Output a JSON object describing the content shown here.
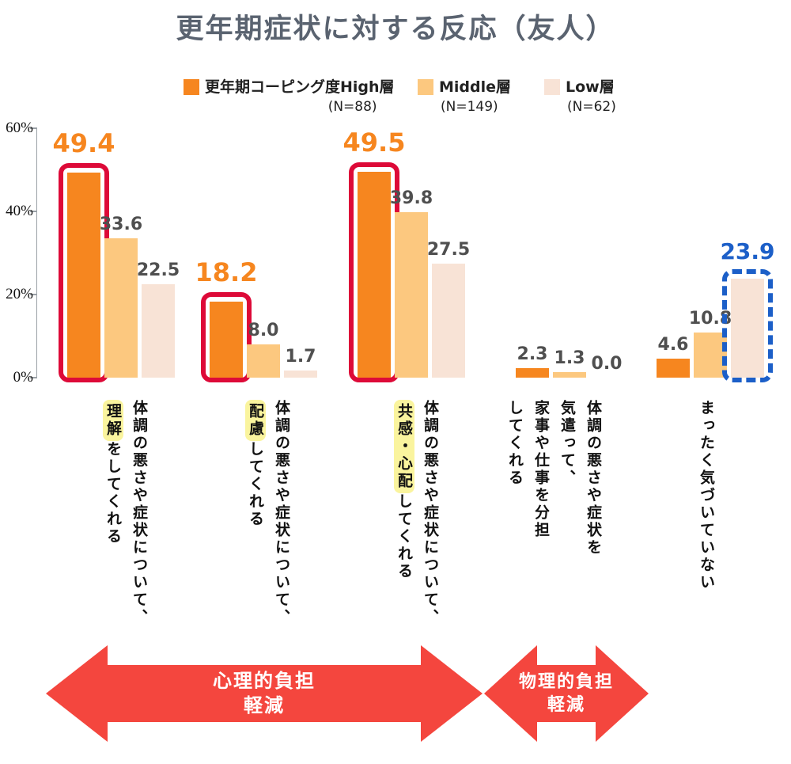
{
  "title": "更年期症状に対する反応（友人）",
  "legend": [
    {
      "label": "更年期コーピング度High層",
      "n": "(N=88)",
      "color": "#F6861F"
    },
    {
      "label": "Middle層",
      "n": "(N=149)",
      "color": "#FCC87F"
    },
    {
      "label": "Low層",
      "n": "(N=62)",
      "color": "#F8E3D6"
    }
  ],
  "chart_data": {
    "type": "bar",
    "title": "更年期症状に対する反応（友人）",
    "ylabel": "",
    "ylim": [
      0,
      60
    ],
    "yticks": [
      "60%",
      "40%",
      "20%",
      "0%"
    ],
    "grid": false,
    "legend_position": "top",
    "series_names": [
      "更年期コーピング度High層 (N=88)",
      "Middle層 (N=149)",
      "Low層 (N=62)"
    ],
    "groups": [
      {
        "category": "体調の悪さや症状について、理解をしてくれる",
        "label_lines": [
          [
            {
              "t": "体調の悪さや症状について、"
            }
          ],
          [
            {
              "t": "理解",
              "hl": true
            },
            {
              "t": "をしてくれる"
            }
          ]
        ],
        "values": [
          49.4,
          33.6,
          22.5
        ],
        "highlight": {
          "series": 0,
          "style": "red-solid"
        }
      },
      {
        "category": "体調の悪さや症状について、配慮してくれる",
        "label_lines": [
          [
            {
              "t": "体調の悪さや症状について、"
            }
          ],
          [
            {
              "t": "配慮",
              "hl": true
            },
            {
              "t": "してくれる"
            }
          ]
        ],
        "values": [
          18.2,
          8.0,
          1.7
        ],
        "highlight": {
          "series": 0,
          "style": "red-solid"
        }
      },
      {
        "category": "体調の悪さや症状について、共感・心配してくれる",
        "label_lines": [
          [
            {
              "t": "体調の悪さや症状について、"
            }
          ],
          [
            {
              "t": "共感・心配",
              "hl": true
            },
            {
              "t": "してくれる"
            }
          ]
        ],
        "values": [
          49.5,
          39.8,
          27.5
        ],
        "highlight": {
          "series": 0,
          "style": "red-solid"
        }
      },
      {
        "category": "体調の悪さや症状を気遣って、家事や仕事を分担してくれる",
        "label_lines": [
          [
            {
              "t": "体調の悪さや症状を"
            }
          ],
          [
            {
              "t": "気遣って、"
            }
          ],
          [
            {
              "t": "家事や仕事を分担"
            }
          ],
          [
            {
              "t": "してくれる"
            }
          ]
        ],
        "values": [
          2.3,
          1.3,
          0.0
        ],
        "highlight": null
      },
      {
        "category": "まったく気づいていない",
        "label_lines": [
          [
            {
              "t": "まったく気づいていない"
            }
          ]
        ],
        "values": [
          4.6,
          10.8,
          23.9
        ],
        "highlight": {
          "series": 2,
          "style": "blue-dashed"
        }
      }
    ]
  },
  "annotations": [
    {
      "line1": "心理的負担",
      "line2": "軽減"
    },
    {
      "line1": "物理的負担",
      "line2": "軽減"
    }
  ],
  "colors": {
    "high": "#F6861F",
    "mid": "#FCC87F",
    "low": "#F8E3D6",
    "red": "#DD0A38",
    "blue": "#1C5FC8",
    "arrow": "#F4463E",
    "gray": "#4F4F4F",
    "title": "#5A6370",
    "yellow": "#FAF49E"
  }
}
